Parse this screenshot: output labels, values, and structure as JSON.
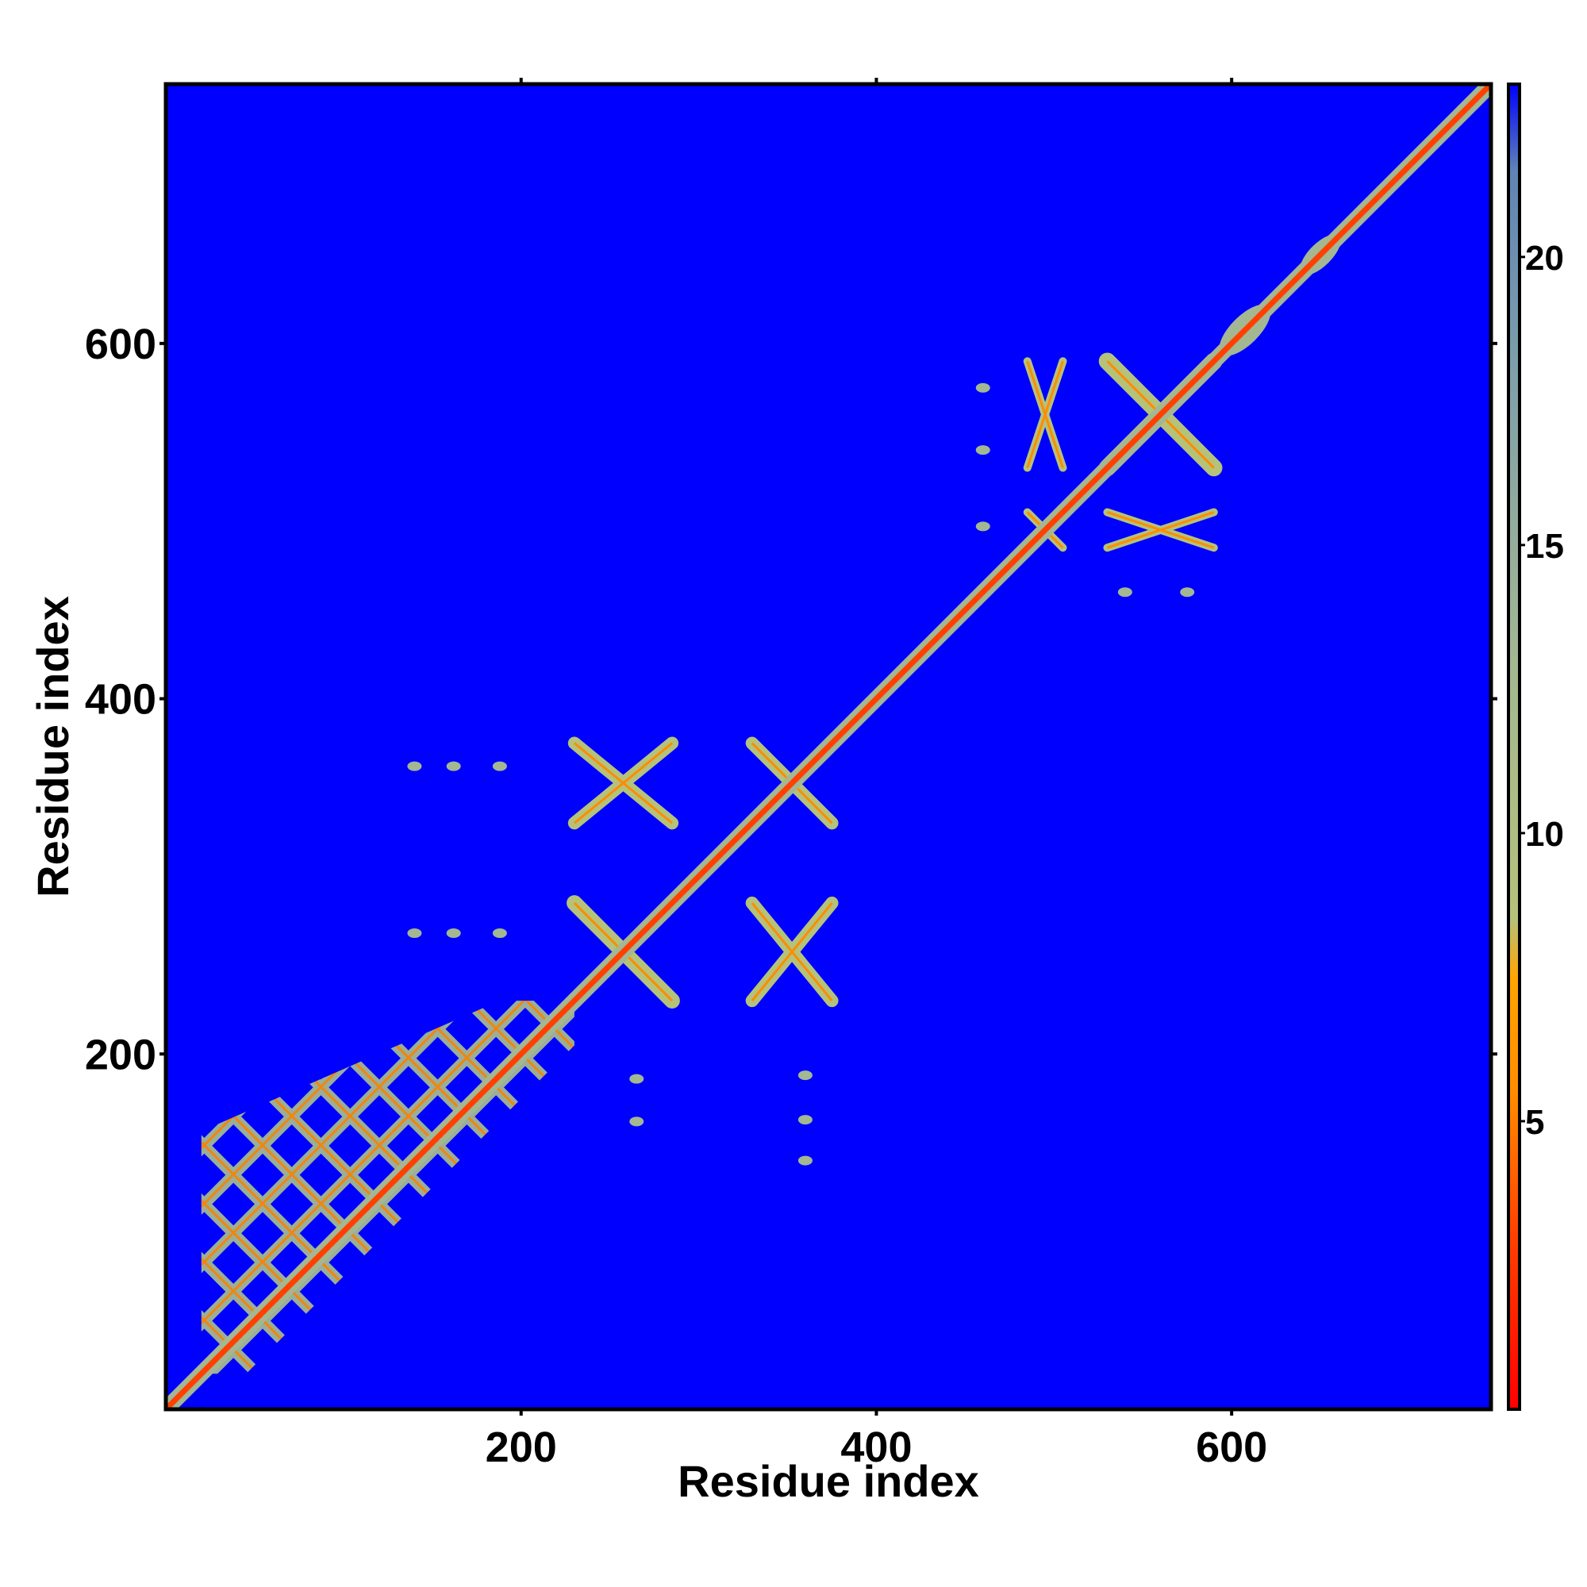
{
  "chart_data": {
    "type": "heatmap",
    "title": "",
    "xlabel": "Residue index",
    "ylabel": "Residue index",
    "xlim": [
      0,
      746
    ],
    "ylim": [
      0,
      746
    ],
    "x_ticks": [
      200,
      400,
      600
    ],
    "x_tick_labels": [
      "200",
      "400",
      "600"
    ],
    "y_ticks": [
      200,
      400,
      600
    ],
    "y_tick_labels": [
      "600",
      "400",
      "200"
    ],
    "y_tick_values": [
      600,
      400,
      200
    ],
    "colorbar": {
      "range": [
        0,
        23
      ],
      "ticks": [
        20,
        15,
        10,
        5
      ],
      "tick_labels": [
        "20",
        "15",
        "10",
        "5"
      ],
      "stops": [
        {
          "value": 0,
          "color": "#ff0000"
        },
        {
          "value": 3,
          "color": "#ff4000"
        },
        {
          "value": 5.5,
          "color": "#ff8c00"
        },
        {
          "value": 7.5,
          "color": "#ffa500"
        },
        {
          "value": 8.5,
          "color": "#b5c27a"
        },
        {
          "value": 13,
          "color": "#a3b792"
        },
        {
          "value": 18,
          "color": "#7f9faa"
        },
        {
          "value": 21.5,
          "color": "#5f84b5"
        },
        {
          "value": 23,
          "color": "#0000ff"
        }
      ]
    },
    "grid": false,
    "legend": "right",
    "background_color": "#0000ff",
    "diagonal": {
      "from": 1,
      "to": 746,
      "value": 3
    },
    "contact_blocks": [
      {
        "x": [
          20,
          230
        ],
        "y": [
          20,
          230
        ],
        "pattern": "lattice",
        "value": 12
      },
      {
        "x": [
          230,
          285
        ],
        "y": [
          230,
          285
        ],
        "pattern": "x",
        "value": 11
      },
      {
        "x": [
          330,
          375
        ],
        "y": [
          330,
          375
        ],
        "pattern": "x",
        "value": 11
      },
      {
        "x": [
          230,
          285
        ],
        "y": [
          330,
          375
        ],
        "pattern": "x",
        "value": 11
      },
      {
        "x": [
          330,
          375
        ],
        "y": [
          230,
          285
        ],
        "pattern": "x",
        "value": 11
      },
      {
        "x": [
          485,
          505
        ],
        "y": [
          485,
          505
        ],
        "pattern": "x",
        "value": 11
      },
      {
        "x": [
          530,
          590
        ],
        "y": [
          530,
          590
        ],
        "pattern": "x",
        "value": 11
      },
      {
        "x": [
          485,
          505
        ],
        "y": [
          530,
          590
        ],
        "pattern": "x",
        "value": 11
      },
      {
        "x": [
          530,
          590
        ],
        "y": [
          485,
          505
        ],
        "pattern": "x",
        "value": 11
      },
      {
        "x": [
          595,
          620
        ],
        "y": [
          595,
          620
        ],
        "pattern": "blob",
        "value": 14
      },
      {
        "x": [
          640,
          660
        ],
        "y": [
          640,
          660
        ],
        "pattern": "blob",
        "value": 14
      }
    ],
    "isolated_contacts": [
      {
        "x": 140,
        "y": 362
      },
      {
        "x": 162,
        "y": 362
      },
      {
        "x": 188,
        "y": 362
      },
      {
        "x": 140,
        "y": 268
      },
      {
        "x": 162,
        "y": 268
      },
      {
        "x": 188,
        "y": 268
      },
      {
        "x": 265,
        "y": 186
      },
      {
        "x": 265,
        "y": 162
      },
      {
        "x": 360,
        "y": 188
      },
      {
        "x": 360,
        "y": 163
      },
      {
        "x": 360,
        "y": 140
      },
      {
        "x": 460,
        "y": 575
      },
      {
        "x": 460,
        "y": 540
      },
      {
        "x": 460,
        "y": 497
      },
      {
        "x": 540,
        "y": 460
      },
      {
        "x": 575,
        "y": 460
      }
    ]
  }
}
